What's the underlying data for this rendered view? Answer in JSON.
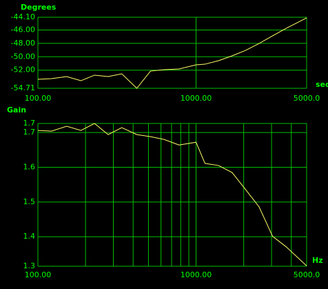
{
  "chart_data": [
    {
      "type": "line",
      "y_label": "Degrees",
      "x_label": "sec",
      "xscale": "log",
      "xlim": [
        100,
        5000
      ],
      "ylim": [
        -54.71,
        -44.1
      ],
      "xticks": [
        {
          "value": 100,
          "label": "100.00"
        },
        {
          "value": 1000,
          "label": "1000.00"
        },
        {
          "value": 5000,
          "label": "5000.0"
        }
      ],
      "yticks": [
        {
          "value": -44.1,
          "label": "-44.10"
        },
        {
          "value": -46,
          "label": "-46.00"
        },
        {
          "value": -48,
          "label": "-48.00"
        },
        {
          "value": -50,
          "label": "-50.00"
        },
        {
          "value": -52,
          "label": "-52.00"
        },
        {
          "value": -54.71,
          "label": "-54.71"
        }
      ],
      "grid": true,
      "grid_color": "#00c000",
      "text_color": "#00ff00",
      "background": "#000000",
      "x": [
        100,
        122,
        152,
        187,
        228,
        278,
        339,
        422,
        515,
        627,
        780,
        1000,
        1138,
        1386,
        1688,
        2054,
        2502,
        3046,
        3711,
        5000
      ],
      "series": [
        {
          "color": "#ffff66",
          "values": [
            -53.37,
            -53.27,
            -52.96,
            -53.58,
            -52.75,
            -52.96,
            -52.55,
            -54.71,
            -52.14,
            -51.93,
            -51.83,
            -51.21,
            -51.11,
            -50.59,
            -49.87,
            -49.05,
            -48.02,
            -46.88,
            -45.75,
            -44.2
          ]
        }
      ]
    },
    {
      "type": "line",
      "y_label": "Gain",
      "x_label": "Hz",
      "xscale": "log",
      "xlim": [
        100,
        5000
      ],
      "ylim": [
        1.315,
        1.726
      ],
      "xticks": [
        {
          "value": 100,
          "label": "100.00"
        },
        {
          "value": 1000,
          "label": "1000.00"
        },
        {
          "value": 5000,
          "label": "5000.0"
        }
      ],
      "xminor": [
        200,
        300,
        400,
        500,
        600,
        700,
        800,
        900,
        2000,
        3000,
        4000
      ],
      "yticks": [
        {
          "value": 1.726,
          "label": "1.7"
        },
        1.7,
        1.6,
        1.5,
        1.4,
        {
          "value": 1.315,
          "label": "1.3"
        }
      ],
      "grid": true,
      "grid_color": "#00c000",
      "text_color": "#00ff00",
      "background": "#000000",
      "x": [
        100,
        122,
        152,
        187,
        228,
        278,
        339,
        422,
        515,
        627,
        780,
        1000,
        1138,
        1386,
        1688,
        2054,
        2502,
        3046,
        3711,
        5000
      ],
      "series": [
        {
          "color": "#ffff66",
          "values": [
            1.706,
            1.704,
            1.718,
            1.706,
            1.726,
            1.694,
            1.714,
            1.694,
            1.688,
            1.68,
            1.664,
            1.672,
            1.611,
            1.605,
            1.585,
            1.536,
            1.486,
            1.401,
            1.371,
            1.316
          ]
        }
      ]
    }
  ]
}
